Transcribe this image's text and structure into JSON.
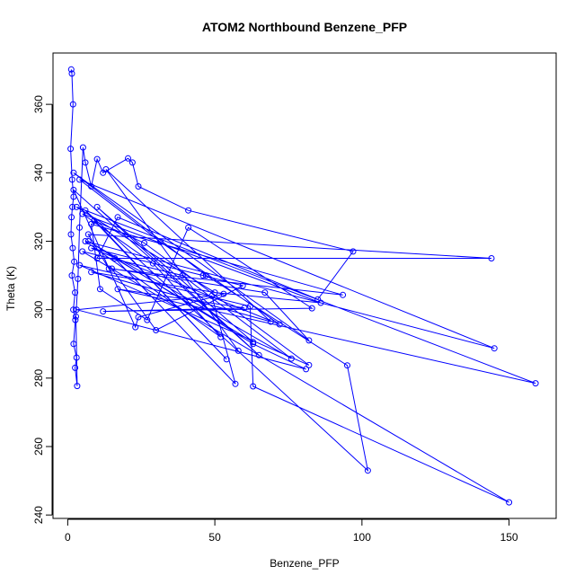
{
  "chart_data": {
    "type": "line",
    "title": "ATOM2 Northbound Benzene_PFP",
    "xlabel": "Benzene_PFP",
    "ylabel": "Theta (K)",
    "xlim": [
      -5,
      166
    ],
    "ylim": [
      239,
      375
    ],
    "xticks": [
      0,
      50,
      100,
      150
    ],
    "yticks": [
      240,
      260,
      280,
      300,
      320,
      340,
      360
    ],
    "grid": false,
    "series_color": "#0000ff",
    "markers": "open-circle",
    "series": [
      {
        "points": [
          [
            1.2,
            370.2
          ],
          [
            1.4,
            369.0
          ],
          [
            1.8,
            360.0
          ],
          [
            1.0,
            347.0
          ],
          [
            1.5,
            338.0
          ],
          [
            2.0,
            333.0
          ],
          [
            1.6,
            330.0
          ],
          [
            1.3,
            327.0
          ],
          [
            1.1,
            322.0
          ],
          [
            1.7,
            318.0
          ],
          [
            2.2,
            314.0
          ],
          [
            1.4,
            310.0
          ],
          [
            2.5,
            305.0
          ],
          [
            1.9,
            300.0
          ],
          [
            2.6,
            297.0
          ],
          [
            2.0,
            290.0
          ],
          [
            3.0,
            286.0
          ],
          [
            2.5,
            283.0
          ],
          [
            3.2,
            277.7
          ],
          [
            2.8,
            298.0
          ],
          [
            3.5,
            309.0
          ],
          [
            4.0,
            324.0
          ],
          [
            5.2,
            347.4
          ],
          [
            6.0,
            343.0
          ],
          [
            8.0,
            336.0
          ],
          [
            10.0,
            344.0
          ],
          [
            12.0,
            340.0
          ],
          [
            20.5,
            344.2
          ],
          [
            22.0,
            343.0
          ],
          [
            24.0,
            336.0
          ],
          [
            41.0,
            329.0
          ],
          [
            97.0,
            317.0
          ],
          [
            85.0,
            303.0
          ],
          [
            17.0,
            327.0
          ],
          [
            10.0,
            315.0
          ],
          [
            144.0,
            315.0
          ],
          [
            7.0,
            322.0
          ],
          [
            14.0,
            312.0
          ],
          [
            93.5,
            304.3
          ],
          [
            8.0,
            325.0
          ],
          [
            11.0,
            306.0
          ],
          [
            27.0,
            297.0
          ],
          [
            41.0,
            324.0
          ],
          [
            83.0,
            300.4
          ],
          [
            12.0,
            299.5
          ],
          [
            60.0,
            300.5
          ],
          [
            17.0,
            306.0
          ],
          [
            159.0,
            278.5
          ],
          [
            3.0,
            330.0
          ],
          [
            50.0,
            305.0
          ],
          [
            86.0,
            302.0
          ],
          [
            5.0,
            328.0
          ],
          [
            29.0,
            313.5
          ],
          [
            52.0,
            292.0
          ],
          [
            6.0,
            320.0
          ],
          [
            145.0,
            288.7
          ],
          [
            4.0,
            338.0
          ],
          [
            31.5,
            319.8
          ],
          [
            72.0,
            295.7
          ],
          [
            8.0,
            318.0
          ],
          [
            46.0,
            310.0
          ],
          [
            59.5,
            307.0
          ],
          [
            30.0,
            294.0
          ],
          [
            15.0,
            312.0
          ],
          [
            67.0,
            305.0
          ],
          [
            82.0,
            291.0
          ],
          [
            2.0,
            340.0
          ],
          [
            47.0,
            310.0
          ],
          [
            95.0,
            283.7
          ],
          [
            102.0,
            253.0
          ],
          [
            6.0,
            329.0
          ],
          [
            54.0,
            285.5
          ],
          [
            9.0,
            326.0
          ],
          [
            26.0,
            319.5
          ],
          [
            82.0,
            283.8
          ],
          [
            4.0,
            313.0
          ],
          [
            62.0,
            301.0
          ],
          [
            63.0,
            277.6
          ],
          [
            150.0,
            243.7
          ],
          [
            5.0,
            317.0
          ],
          [
            39.0,
            310.0
          ],
          [
            76.0,
            285.7
          ],
          [
            7.0,
            320.0
          ],
          [
            63.0,
            290.0
          ],
          [
            81.0,
            282.6
          ],
          [
            3.0,
            300.0
          ],
          [
            49.0,
            304.0
          ],
          [
            57.0,
            278.3
          ],
          [
            16.0,
            315.0
          ],
          [
            63.0,
            290.5
          ],
          [
            10.0,
            330.0
          ],
          [
            65.0,
            286.7
          ],
          [
            2.0,
            335.0
          ],
          [
            23.0,
            294.9
          ],
          [
            24.0,
            297.8
          ],
          [
            53.0,
            304.6
          ],
          [
            8.0,
            311.0
          ],
          [
            69.0,
            296.5
          ],
          [
            13.0,
            341.0
          ],
          [
            58.0,
            288.0
          ]
        ]
      }
    ]
  }
}
